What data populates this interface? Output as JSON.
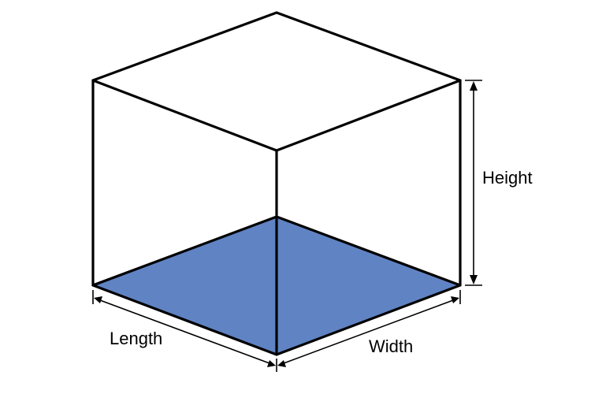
{
  "labels": {
    "height": "Height",
    "length": "Length",
    "width": "Width"
  },
  "colors": {
    "base_face": "#6083c3",
    "edges": "#000000",
    "background": "#ffffff"
  }
}
